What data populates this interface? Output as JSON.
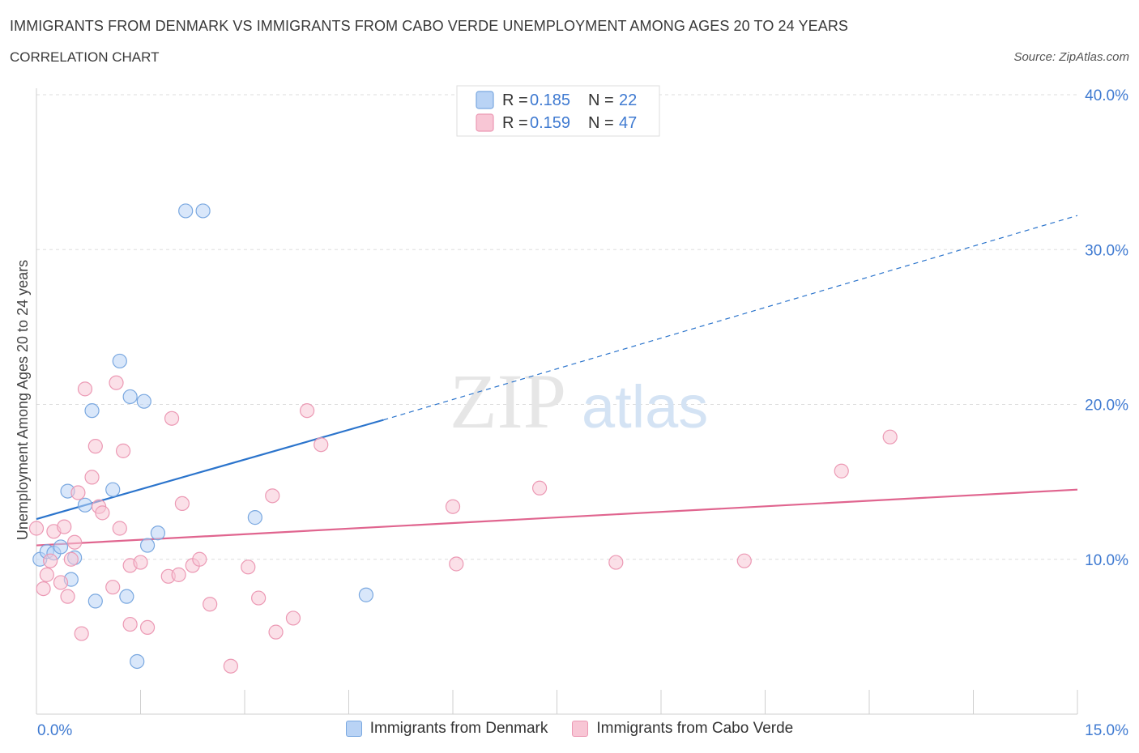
{
  "header": {
    "title": "IMMIGRANTS FROM DENMARK VS IMMIGRANTS FROM CABO VERDE UNEMPLOYMENT AMONG AGES 20 TO 24 YEARS",
    "subtitle": "CORRELATION CHART",
    "source": "Source: ZipAtlas.com"
  },
  "watermark": {
    "zip": "ZIP",
    "atlas": "atlas"
  },
  "colors": {
    "denmark_fill": "#b9d3f5",
    "denmark_stroke": "#7aa8e0",
    "denmark_line": "#2b74cc",
    "caboverde_fill": "#f8c6d5",
    "caboverde_stroke": "#ec99b4",
    "caboverde_line": "#e0658f",
    "value_text": "#3f7ad1",
    "grid": "#dddddd"
  },
  "chart_data": {
    "type": "scatter",
    "title": "IMMIGRANTS FROM DENMARK VS IMMIGRANTS FROM CABO VERDE UNEMPLOYMENT AMONG AGES 20 TO 24 YEARS",
    "xlabel": "",
    "ylabel": "Unemployment Among Ages 20 to 24 years",
    "xlim": [
      0,
      15
    ],
    "ylim": [
      0,
      40
    ],
    "x_tick_labels": [
      "0.0%",
      "15.0%"
    ],
    "y_ticks": [
      10,
      20,
      30,
      40
    ],
    "y_tick_labels": [
      "10.0%",
      "20.0%",
      "30.0%",
      "40.0%"
    ],
    "grid": true,
    "legend": [
      {
        "name": "Immigrants from Denmark",
        "r_label": "R =",
        "r_value": "0.185",
        "n_label": "N =",
        "n_value": "22"
      },
      {
        "name": "Immigrants from Cabo Verde",
        "r_label": "R =",
        "r_value": "0.159",
        "n_label": "N =",
        "n_value": "47"
      }
    ],
    "series": [
      {
        "name": "Immigrants from Denmark",
        "points": [
          [
            0.05,
            10.0
          ],
          [
            0.15,
            10.5
          ],
          [
            0.25,
            10.4
          ],
          [
            0.35,
            10.8
          ],
          [
            0.45,
            14.4
          ],
          [
            0.5,
            8.7
          ],
          [
            0.55,
            10.1
          ],
          [
            0.7,
            13.5
          ],
          [
            0.8,
            19.6
          ],
          [
            0.85,
            7.3
          ],
          [
            1.1,
            14.5
          ],
          [
            1.2,
            22.8
          ],
          [
            1.3,
            7.6
          ],
          [
            1.35,
            20.5
          ],
          [
            1.45,
            3.4
          ],
          [
            1.55,
            20.2
          ],
          [
            1.6,
            10.9
          ],
          [
            1.75,
            11.7
          ],
          [
            2.15,
            32.5
          ],
          [
            2.4,
            32.5
          ],
          [
            3.15,
            12.7
          ],
          [
            4.75,
            7.7
          ]
        ],
        "trend": {
          "x0": 0,
          "y0": 12.6,
          "x1": 5.0,
          "y1": 19.0,
          "dash_x1": 15.0,
          "dash_y1": 32.2
        }
      },
      {
        "name": "Immigrants from Cabo Verde",
        "points": [
          [
            0.0,
            12.0
          ],
          [
            0.1,
            8.1
          ],
          [
            0.15,
            9.0
          ],
          [
            0.2,
            9.9
          ],
          [
            0.25,
            11.8
          ],
          [
            0.35,
            8.5
          ],
          [
            0.4,
            12.1
          ],
          [
            0.45,
            7.6
          ],
          [
            0.5,
            10.0
          ],
          [
            0.55,
            11.1
          ],
          [
            0.6,
            14.3
          ],
          [
            0.65,
            5.2
          ],
          [
            0.7,
            21.0
          ],
          [
            0.8,
            15.3
          ],
          [
            0.85,
            17.3
          ],
          [
            0.9,
            13.4
          ],
          [
            0.95,
            13.0
          ],
          [
            1.1,
            8.2
          ],
          [
            1.15,
            21.4
          ],
          [
            1.2,
            12.0
          ],
          [
            1.25,
            17.0
          ],
          [
            1.35,
            9.6
          ],
          [
            1.35,
            5.8
          ],
          [
            1.5,
            9.8
          ],
          [
            1.6,
            5.6
          ],
          [
            1.9,
            8.9
          ],
          [
            1.95,
            19.1
          ],
          [
            2.05,
            9.0
          ],
          [
            2.1,
            13.6
          ],
          [
            2.25,
            9.6
          ],
          [
            2.35,
            10.0
          ],
          [
            2.5,
            7.1
          ],
          [
            2.8,
            3.1
          ],
          [
            3.05,
            9.5
          ],
          [
            3.2,
            7.5
          ],
          [
            3.4,
            14.1
          ],
          [
            3.45,
            5.3
          ],
          [
            3.7,
            6.2
          ],
          [
            3.9,
            19.6
          ],
          [
            4.1,
            17.4
          ],
          [
            6.0,
            13.4
          ],
          [
            6.05,
            9.7
          ],
          [
            7.25,
            14.6
          ],
          [
            8.35,
            9.8
          ],
          [
            10.2,
            9.9
          ],
          [
            11.6,
            15.7
          ],
          [
            12.3,
            17.9
          ]
        ],
        "trend": {
          "x0": 0,
          "y0": 10.9,
          "x1": 15.0,
          "y1": 14.5
        }
      }
    ]
  }
}
